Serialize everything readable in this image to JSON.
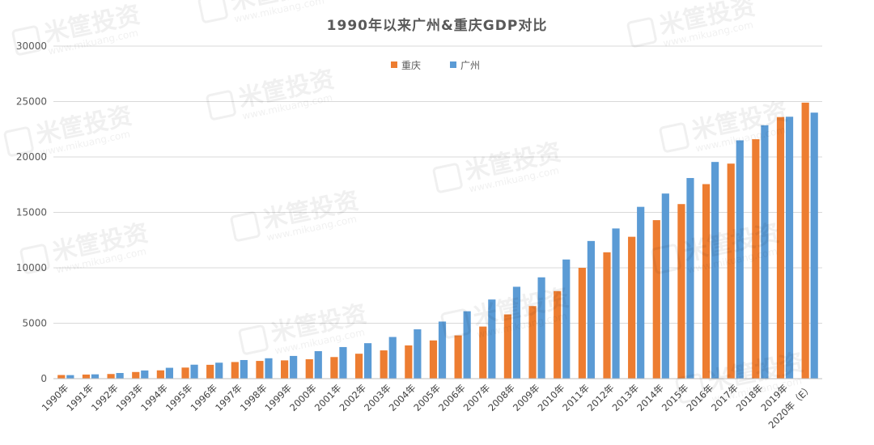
{
  "chart_data": {
    "type": "bar",
    "title": "1990年以来广州&重庆GDP对比",
    "xlabel": "",
    "ylabel": "",
    "ylim": [
      0,
      30000
    ],
    "yticks": [
      0,
      5000,
      10000,
      15000,
      20000,
      25000,
      30000
    ],
    "grid": true,
    "legend_position": "top-center",
    "categories": [
      "1990年",
      "1991年",
      "1992年",
      "1993年",
      "1994年",
      "1995年",
      "1996年",
      "1997年",
      "1998年",
      "1999年",
      "2000年",
      "2001年",
      "2002年",
      "2003年",
      "2004年",
      "2005年",
      "2006年",
      "2007年",
      "2008年",
      "2009年",
      "2010年",
      "2011年",
      "2012年",
      "2013年",
      "2014年",
      "2015年",
      "2016年",
      "2017年",
      "2018年",
      "2019年",
      "2020年（E）"
    ],
    "series": [
      {
        "name": "重庆",
        "color": "#ed7d31",
        "values": [
          330,
          370,
          420,
          600,
          750,
          1000,
          1250,
          1500,
          1600,
          1650,
          1750,
          1950,
          2250,
          2550,
          3000,
          3450,
          3900,
          4700,
          5800,
          6550,
          7900,
          10000,
          11400,
          12800,
          14300,
          15750,
          17550,
          19400,
          21600,
          23600,
          24900
        ]
      },
      {
        "name": "广州",
        "color": "#5b9bd5",
        "values": [
          320,
          390,
          510,
          740,
          980,
          1260,
          1440,
          1680,
          1840,
          2050,
          2480,
          2850,
          3200,
          3760,
          4450,
          5150,
          6080,
          7140,
          8290,
          9140,
          10750,
          12420,
          13550,
          15500,
          16700,
          18100,
          19550,
          21500,
          22860,
          23630,
          24000
        ]
      }
    ]
  },
  "watermark": {
    "text": "米筐投资",
    "url": "www.mikuang.com"
  }
}
